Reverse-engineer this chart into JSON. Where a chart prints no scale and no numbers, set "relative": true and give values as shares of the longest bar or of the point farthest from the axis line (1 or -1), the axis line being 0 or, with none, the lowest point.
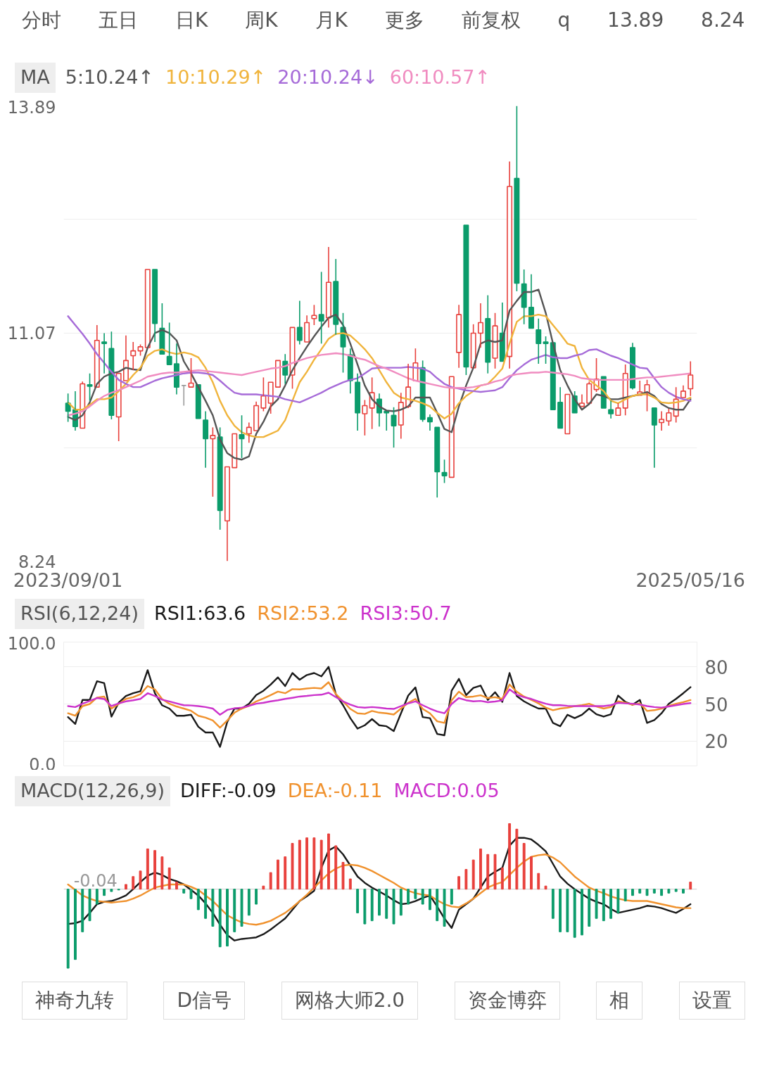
{
  "chart_data": [
    {
      "type": "candlestick",
      "legend_title": "MA",
      "legend": "top left",
      "grid": "y",
      "annotations": [
        "分时",
        "五日",
        "日K",
        "周K",
        "月K",
        "更多",
        "前复权",
        "q",
        "13.89",
        "8.24"
      ],
      "categories": [
        "2023/09/01",
        null,
        null,
        null,
        null,
        null,
        null,
        null,
        null,
        null,
        null,
        null,
        null,
        null,
        null,
        null,
        null,
        null,
        null,
        null,
        null,
        null,
        null,
        null,
        null,
        null,
        null,
        null,
        null,
        null,
        null,
        null,
        null,
        null,
        null,
        null,
        null,
        null,
        null,
        null,
        null,
        null,
        null,
        null,
        null,
        null,
        null,
        null,
        null,
        null,
        null,
        null,
        null,
        null,
        null,
        null,
        null,
        null,
        null,
        null,
        null,
        null,
        null,
        null,
        null,
        null,
        null,
        null,
        null,
        null,
        null,
        null,
        null,
        null,
        null,
        null,
        null,
        null,
        null,
        null,
        null,
        null,
        null,
        null,
        null,
        null,
        "2025/05/16"
      ],
      "ylim": [
        8.24,
        13.89
      ],
      "yticks": [
        13.89,
        {
          "value": 12.48,
          "label": null
        },
        11.07,
        {
          "value": 9.65,
          "label": null
        },
        8.24
      ],
      "ohlc": [
        [
          10.2,
          10.32,
          9.97,
          10.1
        ],
        [
          10.12,
          10.35,
          9.86,
          9.91
        ],
        [
          9.89,
          10.47,
          9.89,
          10.44
        ],
        [
          10.43,
          10.57,
          10.23,
          10.41
        ],
        [
          10.4,
          11.17,
          10.4,
          10.98
        ],
        [
          10.96,
          11.07,
          10.57,
          10.94
        ],
        [
          10.88,
          11.09,
          10.0,
          10.05
        ],
        [
          10.03,
          10.57,
          9.73,
          10.57
        ],
        [
          10.48,
          11.04,
          10.48,
          10.73
        ],
        [
          10.79,
          10.96,
          10.61,
          10.85
        ],
        [
          10.85,
          10.93,
          10.79,
          10.9
        ],
        [
          10.89,
          11.86,
          10.89,
          11.86
        ],
        [
          11.86,
          11.86,
          10.96,
          11.19
        ],
        [
          11.13,
          11.44,
          10.81,
          10.81
        ],
        [
          10.78,
          11.2,
          10.68,
          10.68
        ],
        [
          10.69,
          10.94,
          10.31,
          10.4
        ],
        [
          10.42,
          10.42,
          10.17,
          10.42
        ],
        [
          10.4,
          10.76,
          10.4,
          10.45
        ],
        [
          10.43,
          10.43,
          10.01,
          10.01
        ],
        [
          9.99,
          10.1,
          9.4,
          9.76
        ],
        [
          9.76,
          9.9,
          9.04,
          9.8
        ],
        [
          9.78,
          9.9,
          8.63,
          8.87
        ],
        [
          8.74,
          9.41,
          8.24,
          9.41
        ],
        [
          9.4,
          9.82,
          9.4,
          9.82
        ],
        [
          9.81,
          10.05,
          9.52,
          9.76
        ],
        [
          9.82,
          9.96,
          9.71,
          9.9
        ],
        [
          9.86,
          10.22,
          9.86,
          10.17
        ],
        [
          10.14,
          10.52,
          10.1,
          10.29
        ],
        [
          10.2,
          10.46,
          10.07,
          10.46
        ],
        [
          10.4,
          10.73,
          10.4,
          10.73
        ],
        [
          10.72,
          10.81,
          10.44,
          10.55
        ],
        [
          10.55,
          11.14,
          10.38,
          11.14
        ],
        [
          11.14,
          11.47,
          10.93,
          10.98
        ],
        [
          10.96,
          11.29,
          10.96,
          11.2
        ],
        [
          11.25,
          11.42,
          11.17,
          11.29
        ],
        [
          11.3,
          11.83,
          10.94,
          11.22
        ],
        [
          11.26,
          12.14,
          11.14,
          11.7
        ],
        [
          11.71,
          11.99,
          11.05,
          11.18
        ],
        [
          11.14,
          11.32,
          10.58,
          10.9
        ],
        [
          10.8,
          10.88,
          10.32,
          10.48
        ],
        [
          10.46,
          10.57,
          9.86,
          10.08
        ],
        [
          10.07,
          10.24,
          9.8,
          10.17
        ],
        [
          10.14,
          10.52,
          9.88,
          10.33
        ],
        [
          10.25,
          10.32,
          9.91,
          10.08
        ],
        [
          10.1,
          10.1,
          9.86,
          10.08
        ],
        [
          10.05,
          10.15,
          9.65,
          9.92
        ],
        [
          9.93,
          10.33,
          9.76,
          10.21
        ],
        [
          10.16,
          10.69,
          10.14,
          10.4
        ],
        [
          10.48,
          10.88,
          10.48,
          10.7
        ],
        [
          10.64,
          10.73,
          9.97,
          10.0
        ],
        [
          10.02,
          10.06,
          9.86,
          9.97
        ],
        [
          9.9,
          9.9,
          9.03,
          9.35
        ],
        [
          9.34,
          9.5,
          9.21,
          9.3
        ],
        [
          9.28,
          10.53,
          9.28,
          10.53
        ],
        [
          10.83,
          11.42,
          10.64,
          11.3
        ],
        [
          12.41,
          12.41,
          10.55,
          10.65
        ],
        [
          10.64,
          11.18,
          10.64,
          11.07
        ],
        [
          11.07,
          11.44,
          10.89,
          11.2
        ],
        [
          11.25,
          11.54,
          10.57,
          10.71
        ],
        [
          10.76,
          11.32,
          10.63,
          11.16
        ],
        [
          11.07,
          11.45,
          10.72,
          10.72
        ],
        [
          10.78,
          13.2,
          10.63,
          12.89
        ],
        [
          12.99,
          13.89,
          11.59,
          11.69
        ],
        [
          11.68,
          11.86,
          11.18,
          11.39
        ],
        [
          11.39,
          11.8,
          11.13,
          11.13
        ],
        [
          11.11,
          11.25,
          10.69,
          10.94
        ],
        [
          10.96,
          11.03,
          10.69,
          10.94
        ],
        [
          10.95,
          10.95,
          10.12,
          10.12
        ],
        [
          10.21,
          10.4,
          9.89,
          9.89
        ],
        [
          9.82,
          10.31,
          9.82,
          10.31
        ],
        [
          10.29,
          10.35,
          10.08,
          10.08
        ],
        [
          10.16,
          10.31,
          10.16,
          10.2
        ],
        [
          10.2,
          10.47,
          10.2,
          10.44
        ],
        [
          10.37,
          10.76,
          10.34,
          10.5
        ],
        [
          10.53,
          10.53,
          10.14,
          10.14
        ],
        [
          10.12,
          10.23,
          10.01,
          10.07
        ],
        [
          10.05,
          10.2,
          10.05,
          10.14
        ],
        [
          10.14,
          10.68,
          10.05,
          10.57
        ],
        [
          10.89,
          10.95,
          10.37,
          10.39
        ],
        [
          10.3,
          10.48,
          10.3,
          10.34
        ],
        [
          10.33,
          10.49,
          10.1,
          10.43
        ],
        [
          10.14,
          10.14,
          9.4,
          9.93
        ],
        [
          9.96,
          10.1,
          9.86,
          10.0
        ],
        [
          9.98,
          10.13,
          9.92,
          10.08
        ],
        [
          10.04,
          10.4,
          9.96,
          10.25
        ],
        [
          10.27,
          10.42,
          10.27,
          10.35
        ],
        [
          10.38,
          10.72,
          10.29,
          10.55
        ]
      ],
      "colors": [
        "#0b9c6b",
        "#0b9c6b",
        "#e8403c",
        "#0b9c6b",
        "#e8403c",
        "#0b9c6b",
        "#0b9c6b",
        "#e8403c",
        "#e8403c",
        "#e8403c",
        "#e8403c",
        "#e8403c",
        "#0b9c6b",
        "#0b9c6b",
        "#0b9c6b",
        "#0b9c6b",
        "#9a9a9a",
        "#e8403c",
        "#0b9c6b",
        "#0b9c6b",
        "#e8403c",
        "#0b9c6b",
        "#e8403c",
        "#e8403c",
        "#0b9c6b",
        "#e8403c",
        "#e8403c",
        "#e8403c",
        "#e8403c",
        "#e8403c",
        "#0b9c6b",
        "#e8403c",
        "#0b9c6b",
        "#e8403c",
        "#e8403c",
        "#0b9c6b",
        "#e8403c",
        "#0b9c6b",
        "#0b9c6b",
        "#0b9c6b",
        "#0b9c6b",
        "#e8403c",
        "#e8403c",
        "#0b9c6b",
        "#0b9c6b",
        "#0b9c6b",
        "#e8403c",
        "#e8403c",
        "#e8403c",
        "#0b9c6b",
        "#0b9c6b",
        "#0b9c6b",
        "#0b9c6b",
        "#e8403c",
        "#e8403c",
        "#0b9c6b",
        "#e8403c",
        "#e8403c",
        "#0b9c6b",
        "#e8403c",
        "#0b9c6b",
        "#e8403c",
        "#0b9c6b",
        "#0b9c6b",
        "#0b9c6b",
        "#0b9c6b",
        "#0b9c6b",
        "#0b9c6b",
        "#0b9c6b",
        "#e8403c",
        "#0b9c6b",
        "#e8403c",
        "#e8403c",
        "#e8403c",
        "#0b9c6b",
        "#0b9c6b",
        "#e8403c",
        "#e8403c",
        "#0b9c6b",
        "#e8403c",
        "#e8403c",
        "#0b9c6b",
        "#e8403c",
        "#e8403c",
        "#e8403c",
        "#e8403c",
        "#e8403c"
      ],
      "series": [
        {
          "name": "5:10.24↑",
          "type": "line",
          "color": "#555555",
          "values": [
            10.03,
            9.99,
            10.05,
            10.21,
            10.44,
            10.53,
            10.57,
            10.59,
            10.64,
            10.62,
            10.61,
            10.89,
            11.07,
            11.11,
            11.07,
            10.98,
            10.72,
            10.57,
            10.4,
            10.23,
            10.05,
            9.75,
            9.58,
            9.52,
            9.5,
            9.54,
            9.82,
            9.97,
            10.16,
            10.25,
            10.42,
            10.61,
            10.76,
            10.9,
            11.03,
            11.15,
            11.26,
            11.3,
            11.17,
            10.94,
            10.68,
            10.42,
            10.25,
            10.16,
            10.11,
            10.1,
            10.12,
            10.16,
            10.27,
            10.27,
            10.27,
            10.08,
            9.88,
            9.84,
            10.16,
            10.42,
            10.64,
            10.94,
            10.98,
            10.96,
            10.98,
            11.35,
            11.47,
            11.58,
            11.58,
            11.61,
            11.32,
            10.94,
            10.61,
            10.42,
            10.25,
            10.12,
            10.19,
            10.31,
            10.29,
            10.25,
            10.25,
            10.27,
            10.29,
            10.31,
            10.34,
            10.29,
            10.19,
            10.14,
            10.12,
            10.12,
            10.25
          ]
        },
        {
          "name": "10:10.29↑",
          "type": "line",
          "color": "#f0b43c",
          "values": [
            10.21,
            10.12,
            10.12,
            10.18,
            10.25,
            10.25,
            10.27,
            10.35,
            10.44,
            10.55,
            10.64,
            10.79,
            10.85,
            10.87,
            10.83,
            10.81,
            10.83,
            10.81,
            10.77,
            10.64,
            10.46,
            10.23,
            10.05,
            9.92,
            9.84,
            9.8,
            9.78,
            9.78,
            9.82,
            9.86,
            9.99,
            10.23,
            10.46,
            10.59,
            10.74,
            10.87,
            11.0,
            11.06,
            11.07,
            11.04,
            10.96,
            10.87,
            10.76,
            10.61,
            10.46,
            10.33,
            10.27,
            10.25,
            10.23,
            10.2,
            10.16,
            10.08,
            10.01,
            10.07,
            10.2,
            10.29,
            10.35,
            10.42,
            10.44,
            10.53,
            10.63,
            10.94,
            11.21,
            11.28,
            11.28,
            11.3,
            11.28,
            11.17,
            11.06,
            10.94,
            10.91,
            10.64,
            10.49,
            10.42,
            10.35,
            10.23,
            10.2,
            10.25,
            10.29,
            10.31,
            10.31,
            10.27,
            10.21,
            10.2,
            10.21,
            10.23,
            10.27
          ]
        },
        {
          "name": "20:10.24↓",
          "type": "line",
          "color": "#a66bd8",
          "values": [
            11.28,
            11.17,
            11.06,
            10.94,
            10.81,
            10.7,
            10.59,
            10.49,
            10.44,
            10.4,
            10.4,
            10.44,
            10.48,
            10.51,
            10.53,
            10.55,
            10.57,
            10.58,
            10.58,
            10.57,
            10.55,
            10.48,
            10.4,
            10.33,
            10.31,
            10.31,
            10.31,
            10.3,
            10.29,
            10.28,
            10.25,
            10.23,
            10.21,
            10.25,
            10.29,
            10.33,
            10.38,
            10.42,
            10.46,
            10.49,
            10.51,
            10.57,
            10.63,
            10.64,
            10.64,
            10.64,
            10.64,
            10.65,
            10.64,
            10.63,
            10.59,
            10.51,
            10.44,
            10.4,
            10.38,
            10.36,
            10.35,
            10.34,
            10.35,
            10.36,
            10.4,
            10.51,
            10.61,
            10.68,
            10.74,
            10.77,
            10.8,
            10.77,
            10.76,
            10.76,
            10.79,
            10.81,
            10.86,
            10.87,
            10.83,
            10.79,
            10.76,
            10.72,
            10.68,
            10.64,
            10.63,
            10.51,
            10.4,
            10.33,
            10.28,
            10.25,
            10.23
          ]
        },
        {
          "name": "60:10.57↑",
          "type": "line",
          "color": "#f08cc0",
          "values": [
            10.05,
            10.07,
            10.1,
            10.16,
            10.23,
            10.29,
            10.33,
            10.36,
            10.4,
            10.44,
            10.48,
            10.53,
            10.55,
            10.57,
            10.58,
            10.58,
            10.59,
            10.6,
            10.61,
            10.6,
            10.59,
            10.58,
            10.57,
            10.56,
            10.55,
            10.57,
            10.59,
            10.61,
            10.63,
            10.64,
            10.66,
            10.7,
            10.73,
            10.76,
            10.78,
            10.8,
            10.81,
            10.82,
            10.81,
            10.79,
            10.76,
            10.74,
            10.7,
            10.66,
            10.63,
            10.59,
            10.55,
            10.51,
            10.48,
            10.46,
            10.44,
            10.42,
            10.4,
            10.39,
            10.39,
            10.39,
            10.4,
            10.42,
            10.44,
            10.47,
            10.49,
            10.54,
            10.56,
            10.57,
            10.58,
            10.58,
            10.59,
            10.58,
            10.57,
            10.56,
            10.54,
            10.51,
            10.5,
            10.49,
            10.49,
            10.49,
            10.49,
            10.49,
            10.5,
            10.51,
            10.52,
            10.52,
            10.53,
            10.54,
            10.55,
            10.56,
            10.57
          ]
        }
      ]
    },
    {
      "type": "line",
      "legend_title": "RSI(6,12,24)",
      "legend": "top left",
      "grid": "y",
      "tick_labels": "y",
      "categories": [
        "2023/09/01",
        null,
        null,
        null,
        null,
        null,
        null,
        null,
        null,
        null,
        null,
        null,
        null,
        null,
        null,
        null,
        null,
        null,
        null,
        null,
        null,
        null,
        null,
        null,
        null,
        null,
        null,
        null,
        null,
        null,
        null,
        null,
        null,
        null,
        null,
        null,
        null,
        null,
        null,
        null,
        null,
        null,
        null,
        null,
        null,
        null,
        null,
        null,
        null,
        null,
        null,
        null,
        null,
        null,
        null,
        null,
        null,
        null,
        null,
        null,
        null,
        null,
        null,
        null,
        null,
        null,
        null,
        null,
        null,
        null,
        null,
        null,
        null,
        null,
        null,
        null,
        null,
        null,
        null,
        null,
        null,
        null,
        null,
        null,
        null,
        null,
        "2025/05/16"
      ],
      "ylim": [
        0,
        100
      ],
      "yticks": [
        {
          "value": 100,
          "label": "100.0"
        },
        {
          "value": 0,
          "label": "0.0"
        }
      ],
      "y2lim": [
        0,
        100
      ],
      "y2ticks": [
        80,
        50,
        20
      ],
      "series": [
        {
          "name": "RSI1:63.6",
          "color": "#1a1a1a",
          "values": [
            39.4,
            33.9,
            53.3,
            53.3,
            68.4,
            66.8,
            39.8,
            51.0,
            56.4,
            58.7,
            60.3,
            77.3,
            58.7,
            49.0,
            46.3,
            40.5,
            40.5,
            41.3,
            31.6,
            27.0,
            27.0,
            15.4,
            35.5,
            46.3,
            46.3,
            50.2,
            57.2,
            60.7,
            65.7,
            71.5,
            64.5,
            75.0,
            69.6,
            73.4,
            75.0,
            72.3,
            80.0,
            57.9,
            49.0,
            38.6,
            30.1,
            32.8,
            37.8,
            32.8,
            32.0,
            28.1,
            42.5,
            56.8,
            63.4,
            39.4,
            38.6,
            25.8,
            24.7,
            60.7,
            70.3,
            57.2,
            63.0,
            64.9,
            53.3,
            59.5,
            51.7,
            75.0,
            56.4,
            52.1,
            49.0,
            46.3,
            46.3,
            34.7,
            32.0,
            41.3,
            38.6,
            41.3,
            46.3,
            41.7,
            39.8,
            41.7,
            56.8,
            51.7,
            49.4,
            53.3,
            34.7,
            37.0,
            42.5,
            50.2,
            54.1,
            58.7,
            63.6
          ]
        },
        {
          "name": "RSI2:53.2",
          "color": "#f0922e",
          "values": [
            42.5,
            40.5,
            48.3,
            50.0,
            55.2,
            56.0,
            46.3,
            50.0,
            54.1,
            55.5,
            57.9,
            64.5,
            61.8,
            54.0,
            50.2,
            48.0,
            46.3,
            44.5,
            40.5,
            39.0,
            36.7,
            30.9,
            36.7,
            43.0,
            46.3,
            48.5,
            52.1,
            54.5,
            57.2,
            60.0,
            58.7,
            62.0,
            61.8,
            62.5,
            63.0,
            62.5,
            67.6,
            58.0,
            52.1,
            46.0,
            42.5,
            42.0,
            44.4,
            43.0,
            42.5,
            41.5,
            46.3,
            51.0,
            54.1,
            46.0,
            42.5,
            36.0,
            34.7,
            53.0,
            59.9,
            55.5,
            56.0,
            57.0,
            54.8,
            55.5,
            54.1,
            65.7,
            59.9,
            56.0,
            53.3,
            50.5,
            47.1,
            45.0,
            46.3,
            47.0,
            48.3,
            49.0,
            50.2,
            48.0,
            46.3,
            47.5,
            52.1,
            51.0,
            49.4,
            50.5,
            44.4,
            45.0,
            46.3,
            48.5,
            50.2,
            51.5,
            53.2
          ]
        },
        {
          "name": "RSI3:50.7",
          "color": "#cc33cc",
          "values": [
            48.3,
            47.5,
            50.2,
            52.5,
            54.8,
            54.0,
            48.3,
            50.5,
            52.1,
            53.0,
            54.1,
            58.7,
            56.5,
            53.5,
            52.1,
            50.5,
            49.0,
            48.8,
            48.3,
            47.5,
            46.3,
            41.3,
            45.2,
            46.5,
            47.1,
            48.5,
            50.2,
            51.0,
            52.1,
            53.0,
            54.1,
            55.0,
            56.0,
            56.5,
            57.2,
            57.5,
            59.1,
            55.5,
            52.1,
            49.5,
            47.5,
            47.0,
            47.5,
            47.0,
            46.3,
            46.0,
            48.3,
            50.5,
            52.1,
            49.0,
            46.3,
            44.0,
            42.5,
            50.0,
            54.8,
            53.0,
            52.1,
            52.5,
            51.4,
            52.0,
            52.9,
            61.8,
            57.5,
            55.5,
            54.1,
            52.0,
            50.2,
            49.0,
            49.0,
            48.5,
            48.3,
            48.3,
            48.3,
            48.3,
            48.3,
            49.0,
            51.0,
            50.5,
            50.2,
            49.5,
            48.3,
            47.5,
            47.1,
            48.0,
            49.0,
            50.0,
            50.7
          ]
        }
      ]
    },
    {
      "type": "bar",
      "relative": true,
      "legend_title": "MACD(12,26,9)",
      "legend": "top left",
      "tick_labels": false,
      "annotations": [
        "-0.04",
        "神奇九转",
        "D信号",
        "网格大师2.0",
        "资金博弈",
        "相",
        "设置"
      ],
      "categories": [
        "2023/09/01",
        null,
        null,
        null,
        null,
        null,
        null,
        null,
        null,
        null,
        null,
        null,
        null,
        null,
        null,
        null,
        null,
        null,
        null,
        null,
        null,
        null,
        null,
        null,
        null,
        null,
        null,
        null,
        null,
        null,
        null,
        null,
        null,
        null,
        null,
        null,
        null,
        null,
        null,
        null,
        null,
        null,
        null,
        null,
        null,
        null,
        null,
        null,
        null,
        null,
        null,
        null,
        null,
        null,
        null,
        null,
        null,
        null,
        null,
        null,
        null,
        null,
        null,
        null,
        null,
        null,
        null,
        null,
        null,
        null,
        null,
        null,
        null,
        null,
        null,
        null,
        null,
        null,
        null,
        null,
        null,
        null,
        null,
        null,
        null,
        null,
        "2025/05/16"
      ],
      "series": [
        {
          "name": "DIFF:-0.09",
          "type": "line",
          "color": "#1a1a1a",
          "values": [
            -0.44,
            -0.43,
            -0.4,
            -0.3,
            -0.19,
            -0.16,
            -0.15,
            -0.12,
            -0.08,
            0.0,
            0.09,
            0.17,
            0.21,
            0.18,
            0.13,
            0.1,
            0.06,
            -0.01,
            -0.08,
            -0.18,
            -0.3,
            -0.45,
            -0.58,
            -0.65,
            -0.63,
            -0.62,
            -0.61,
            -0.57,
            -0.51,
            -0.44,
            -0.37,
            -0.26,
            -0.15,
            -0.09,
            -0.02,
            0.27,
            0.49,
            0.54,
            0.44,
            0.3,
            0.16,
            0.08,
            0.02,
            -0.03,
            -0.08,
            -0.14,
            -0.19,
            -0.18,
            -0.15,
            -0.11,
            -0.08,
            -0.22,
            -0.37,
            -0.49,
            -0.26,
            -0.19,
            -0.12,
            0.02,
            0.16,
            0.22,
            0.27,
            0.55,
            0.65,
            0.65,
            0.63,
            0.56,
            0.48,
            0.32,
            0.16,
            0.07,
            0.0,
            -0.06,
            -0.12,
            -0.16,
            -0.19,
            -0.25,
            -0.3,
            -0.28,
            -0.26,
            -0.24,
            -0.21,
            -0.22,
            -0.24,
            -0.27,
            -0.3,
            -0.25,
            -0.19
          ]
        },
        {
          "name": "DEA:-0.11",
          "type": "line",
          "color": "#f0922e",
          "values": [
            0.06,
            -0.01,
            -0.08,
            -0.12,
            -0.15,
            -0.16,
            -0.17,
            -0.16,
            -0.15,
            -0.12,
            -0.08,
            -0.03,
            0.02,
            0.04,
            0.06,
            0.06,
            0.06,
            0.03,
            -0.01,
            -0.08,
            -0.15,
            -0.24,
            -0.33,
            -0.38,
            -0.42,
            -0.44,
            -0.45,
            -0.43,
            -0.4,
            -0.35,
            -0.3,
            -0.23,
            -0.15,
            -0.07,
            0.02,
            0.11,
            0.2,
            0.26,
            0.3,
            0.31,
            0.3,
            0.27,
            0.23,
            0.18,
            0.13,
            0.08,
            0.02,
            -0.02,
            -0.05,
            -0.07,
            -0.08,
            -0.14,
            -0.19,
            -0.22,
            -0.23,
            -0.18,
            -0.12,
            -0.05,
            0.02,
            0.06,
            0.09,
            0.18,
            0.27,
            0.35,
            0.41,
            0.43,
            0.44,
            0.4,
            0.34,
            0.25,
            0.16,
            0.09,
            0.02,
            -0.02,
            -0.05,
            -0.09,
            -0.12,
            -0.14,
            -0.15,
            -0.15,
            -0.15,
            -0.17,
            -0.19,
            -0.21,
            -0.23,
            -0.24,
            -0.24
          ]
        },
        {
          "name": "MACD:0.05",
          "type": "bar",
          "color": "#cc33cc",
          "values": [
            -1.0,
            -0.89,
            -0.54,
            -0.4,
            -0.19,
            -0.08,
            -0.03,
            -0.01,
            0.06,
            0.16,
            0.23,
            0.51,
            0.49,
            0.41,
            0.27,
            0.09,
            -0.05,
            -0.12,
            -0.26,
            -0.37,
            -0.47,
            -0.73,
            -0.72,
            -0.54,
            -0.47,
            -0.33,
            -0.19,
            0.04,
            0.21,
            0.37,
            0.41,
            0.58,
            0.62,
            0.65,
            0.65,
            0.62,
            0.7,
            0.55,
            0.34,
            0.13,
            -0.3,
            -0.44,
            -0.4,
            -0.33,
            -0.37,
            -0.44,
            -0.33,
            -0.19,
            -0.12,
            -0.19,
            -0.26,
            -0.4,
            -0.47,
            -0.19,
            0.16,
            0.25,
            0.37,
            0.51,
            0.44,
            0.44,
            0.27,
            0.83,
            0.76,
            0.58,
            0.41,
            0.2,
            0.04,
            -0.37,
            -0.54,
            -0.54,
            -0.61,
            -0.58,
            -0.47,
            -0.37,
            -0.4,
            -0.37,
            -0.3,
            -0.15,
            -0.08,
            -0.05,
            -0.08,
            -0.05,
            -0.08,
            -0.05,
            -0.03,
            -0.05,
            0.09
          ],
          "colors": [
            "#0b9c6b",
            "#0b9c6b",
            "#0b9c6b",
            "#0b9c6b",
            "#0b9c6b",
            "#0b9c6b",
            "#0b9c6b",
            "#0b9c6b",
            "#e8403c",
            "#e8403c",
            "#e8403c",
            "#e8403c",
            "#e8403c",
            "#e8403c",
            "#e8403c",
            "#e8403c",
            "#0b9c6b",
            "#0b9c6b",
            "#0b9c6b",
            "#0b9c6b",
            "#0b9c6b",
            "#0b9c6b",
            "#0b9c6b",
            "#0b9c6b",
            "#0b9c6b",
            "#0b9c6b",
            "#0b9c6b",
            "#e8403c",
            "#e8403c",
            "#e8403c",
            "#e8403c",
            "#e8403c",
            "#e8403c",
            "#e8403c",
            "#e8403c",
            "#e8403c",
            "#e8403c",
            "#e8403c",
            "#e8403c",
            "#e8403c",
            "#0b9c6b",
            "#0b9c6b",
            "#0b9c6b",
            "#0b9c6b",
            "#0b9c6b",
            "#0b9c6b",
            "#0b9c6b",
            "#0b9c6b",
            "#0b9c6b",
            "#0b9c6b",
            "#0b9c6b",
            "#0b9c6b",
            "#0b9c6b",
            "#0b9c6b",
            "#e8403c",
            "#e8403c",
            "#e8403c",
            "#e8403c",
            "#e8403c",
            "#e8403c",
            "#e8403c",
            "#e8403c",
            "#e8403c",
            "#e8403c",
            "#e8403c",
            "#e8403c",
            "#e8403c",
            "#0b9c6b",
            "#0b9c6b",
            "#0b9c6b",
            "#0b9c6b",
            "#0b9c6b",
            "#0b9c6b",
            "#0b9c6b",
            "#0b9c6b",
            "#0b9c6b",
            "#0b9c6b",
            "#0b9c6b",
            "#0b9c6b",
            "#0b9c6b",
            "#0b9c6b",
            "#0b9c6b",
            "#0b9c6b",
            "#0b9c6b",
            "#0b9c6b",
            "#0b9c6b",
            "#e8403c"
          ]
        }
      ]
    }
  ]
}
